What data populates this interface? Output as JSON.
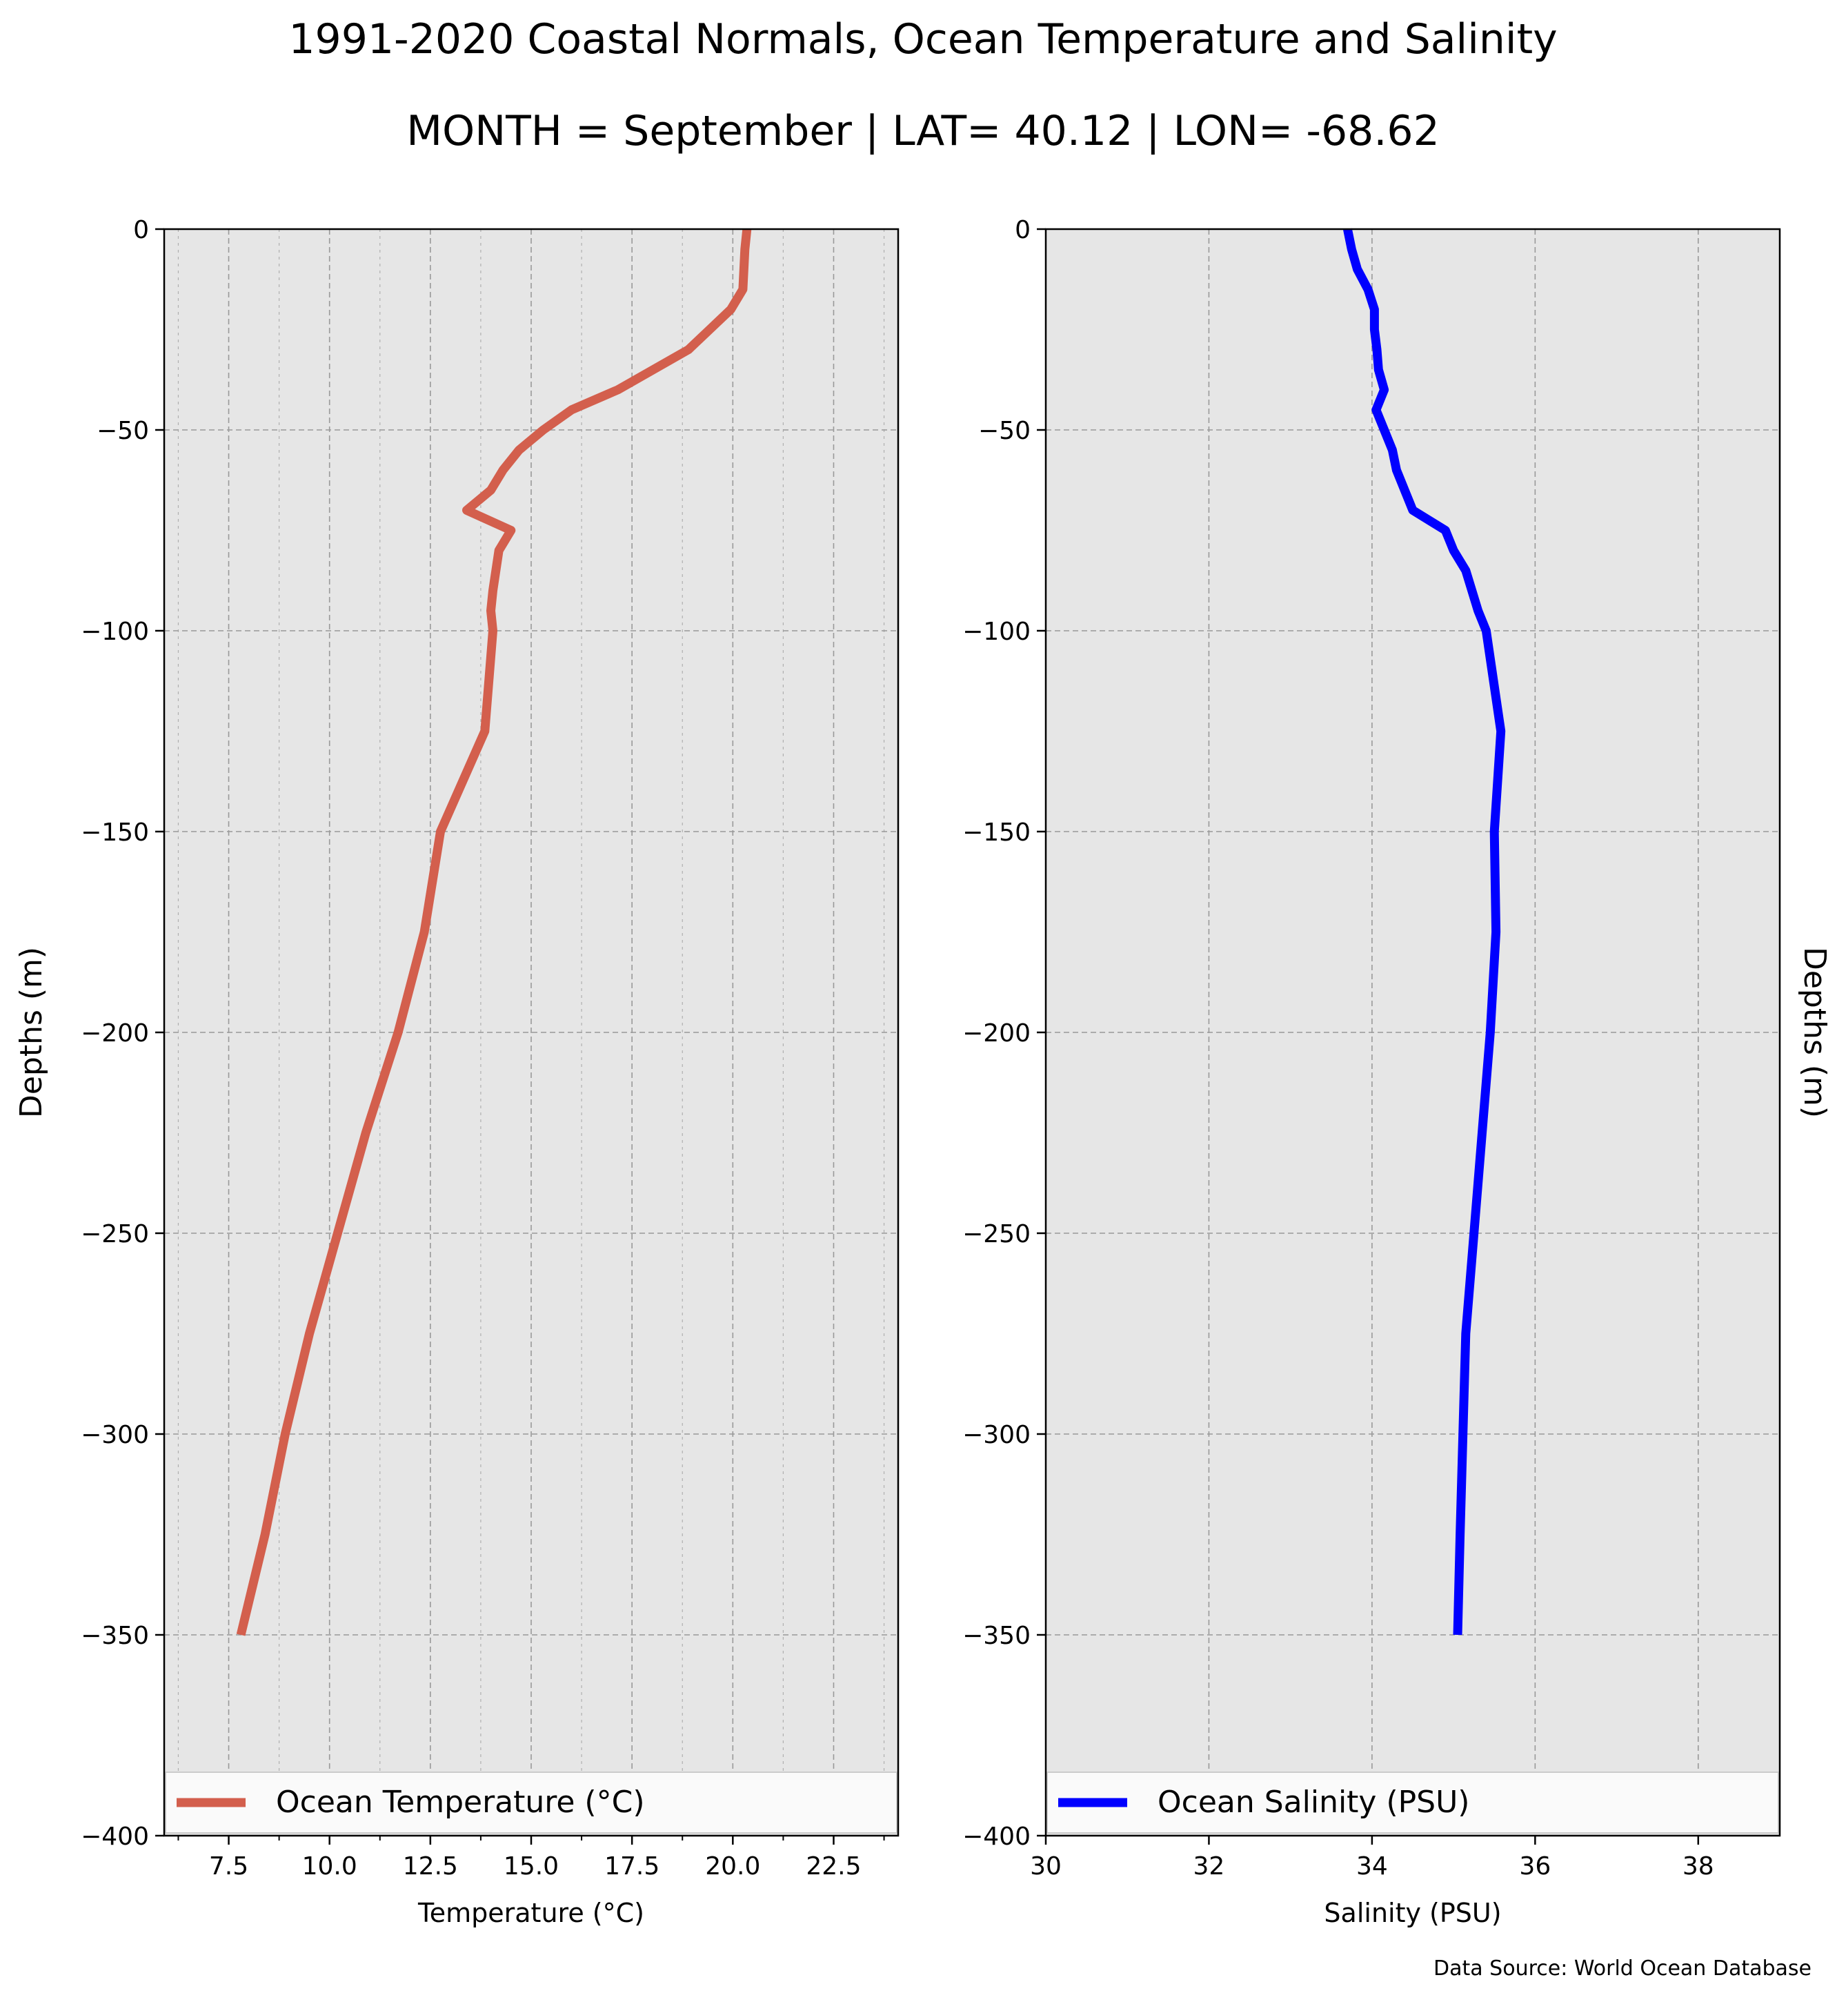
{
  "title": "1991-2020 Coastal Normals, Ocean Temperature and Salinity",
  "subtitle": "MONTH = September | LAT= 40.12 | LON= -68.62",
  "source": "Data Source: World Ocean Database",
  "colors": {
    "temperature": "#d35f4d",
    "salinity": "#0000ff",
    "plot_bg": "#e6e6e6",
    "grid": "#999999"
  },
  "chart_data": [
    {
      "type": "line",
      "xlabel": "Temperature ($^\\circ$C)",
      "xlabel_display": "Temperature (°C)",
      "ylabel": "Depths (m)",
      "xlim": [
        5.9,
        24.1
      ],
      "ylim": [
        -400,
        0
      ],
      "xticks": [
        "7.5",
        "10.0",
        "12.5",
        "15.0",
        "17.5",
        "20.0",
        "22.5"
      ],
      "yticks": [
        "0",
        "−50",
        "−100",
        "−150",
        "−200",
        "−250",
        "−300",
        "−350",
        "−400"
      ],
      "grid": true,
      "legend_position": "bottom",
      "series": [
        {
          "name": "Ocean Temperature (°C)",
          "color": "#d35f4d",
          "x": [
            20.35,
            20.3,
            20.25,
            19.95,
            18.9,
            17.15,
            16.0,
            15.3,
            14.7,
            14.3,
            14.0,
            13.4,
            14.5,
            14.2,
            14.05,
            14.0,
            14.05,
            13.85,
            12.75,
            12.35,
            11.7,
            10.9,
            10.2,
            9.5,
            8.9,
            8.4,
            7.8
          ],
          "y": [
            0,
            -5,
            -15,
            -20,
            -30,
            -40,
            -45,
            -50,
            -55,
            -60,
            -65,
            -70,
            -75,
            -80,
            -90,
            -95,
            -100,
            -125,
            -150,
            -175,
            -200,
            -225,
            -250,
            -275,
            -300,
            -325,
            -350
          ]
        }
      ]
    },
    {
      "type": "line",
      "xlabel": "Salinity (PSU)",
      "ylabel": "Depths (m)",
      "xlim": [
        30,
        39
      ],
      "ylim": [
        -400,
        0
      ],
      "xticks": [
        "30",
        "32",
        "34",
        "36",
        "38"
      ],
      "yticks": [
        "0",
        "−50",
        "−100",
        "−150",
        "−200",
        "−250",
        "−300",
        "−350",
        "−400"
      ],
      "grid": true,
      "legend_position": "bottom",
      "series": [
        {
          "name": "Ocean Salinity (PSU)",
          "color": "#0000ff",
          "x": [
            33.7,
            33.75,
            33.82,
            33.95,
            34.03,
            34.03,
            34.06,
            34.08,
            34.15,
            34.05,
            34.15,
            34.25,
            34.3,
            34.5,
            34.9,
            35.0,
            35.15,
            35.3,
            35.4,
            35.58,
            35.5,
            35.52,
            35.45,
            35.35,
            35.25,
            35.15,
            35.08,
            35.05
          ],
          "y": [
            0,
            -5,
            -10,
            -15,
            -20,
            -25,
            -30,
            -35,
            -40,
            -45,
            -50,
            -55,
            -60,
            -70,
            -75,
            -80,
            -85,
            -95,
            -100,
            -125,
            -150,
            -175,
            -200,
            -225,
            -250,
            -275,
            -325,
            -350
          ]
        }
      ]
    }
  ]
}
